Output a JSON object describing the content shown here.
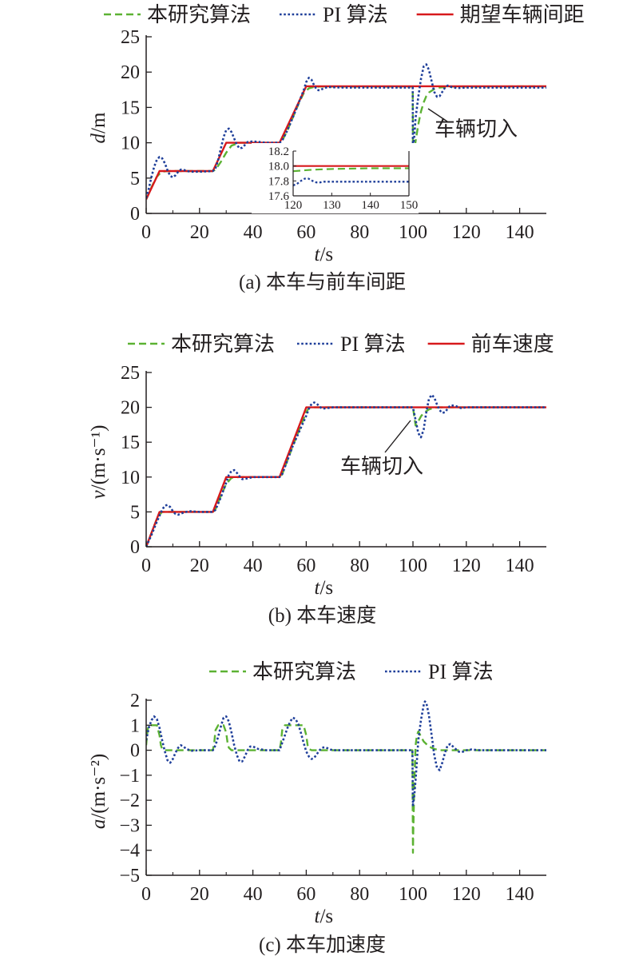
{
  "colors": {
    "proposed": "#5cb233",
    "pi": "#1f3f9a",
    "reference": "#d7191c",
    "axis": "#231f20"
  },
  "chart_data": [
    {
      "id": "a",
      "type": "line",
      "caption": "(a) 本车与前车间距",
      "xlabel_var": "t",
      "xlabel_unit": "/s",
      "ylabel_var": "d",
      "ylabel_unit": "/m",
      "xlim": [
        0,
        150
      ],
      "ylim": [
        0,
        25
      ],
      "xticks": [
        "0",
        "20",
        "40",
        "60",
        "80",
        "100",
        "120",
        "140"
      ],
      "yticks": [
        "0",
        "5",
        "10",
        "15",
        "20",
        "25"
      ],
      "legend": [
        "本研究算法",
        "PI 算法",
        "期望车辆间距"
      ],
      "annotation": "车辆切入",
      "series": [
        {
          "name": "本研究算法",
          "style": "dashed",
          "x": [
            0,
            1,
            2,
            3,
            4,
            5,
            6,
            8,
            10,
            15,
            20,
            25,
            26,
            28,
            30,
            32,
            35,
            40,
            45,
            50,
            51,
            53,
            55,
            57,
            59,
            61,
            63,
            65,
            70,
            80,
            90,
            99.9,
            100,
            100.5,
            101,
            102,
            103,
            104,
            105,
            106,
            108,
            110,
            112,
            115,
            120,
            130,
            140,
            150
          ],
          "y": [
            2,
            2.8,
            3.7,
            4.5,
            5.2,
            5.6,
            5.9,
            6,
            6,
            6,
            6,
            6,
            6.2,
            7.3,
            8.6,
            9.6,
            10,
            10,
            10,
            10,
            10.3,
            11.8,
            13.6,
            15.4,
            17,
            17.7,
            17.9,
            17.95,
            17.95,
            17.95,
            17.95,
            17.95,
            7.8,
            8.8,
            10.2,
            12.6,
            14.4,
            15.7,
            16.6,
            17.1,
            17.6,
            17.8,
            17.9,
            17.95,
            17.95,
            17.96,
            17.97,
            17.97
          ]
        },
        {
          "name": "PI 算法",
          "style": "dotted",
          "x": [
            0,
            1,
            2,
            3,
            4,
            5,
            6,
            7,
            8,
            9,
            10,
            11,
            12,
            13,
            14,
            15,
            17,
            20,
            25,
            26,
            27,
            28,
            29,
            30,
            31,
            32,
            33,
            34,
            35,
            36,
            37,
            38,
            40,
            45,
            50,
            51,
            53,
            55,
            57,
            59,
            60,
            61,
            62,
            63,
            64,
            65,
            66,
            68,
            70,
            75,
            80,
            90,
            99.9,
            100,
            100.5,
            101,
            102,
            103,
            104,
            105,
            106,
            107,
            108,
            109,
            110,
            111,
            112,
            113,
            115,
            117,
            120,
            125,
            130,
            140,
            150
          ],
          "y": [
            2.2,
            3.5,
            5.2,
            6.6,
            7.6,
            8,
            7.8,
            7.1,
            6.1,
            5.3,
            5.1,
            5.4,
            5.9,
            6.2,
            6.2,
            6,
            5.9,
            5.9,
            6,
            6.4,
            7.6,
            9.2,
            10.8,
            11.8,
            12,
            11.5,
            10.6,
            9.7,
            9.2,
            9.3,
            9.7,
            10.1,
            10.2,
            10,
            10,
            10.3,
            11.8,
            13.6,
            15.5,
            17.4,
            18.6,
            19.2,
            18.9,
            18.1,
            17.5,
            17.4,
            17.6,
            17.9,
            17.85,
            17.8,
            17.8,
            17.8,
            17.8,
            9,
            11,
            13.5,
            16.5,
            19,
            20.8,
            21.1,
            20.3,
            18.7,
            17.2,
            16.5,
            16.6,
            17.2,
            17.8,
            18.1,
            17.8,
            17.75,
            17.8,
            17.8,
            17.8,
            17.8,
            17.8
          ]
        },
        {
          "name": "期望车辆间距",
          "style": "solid",
          "x": [
            0,
            5,
            25,
            30,
            50,
            60,
            150
          ],
          "y": [
            2,
            6,
            6,
            10,
            10,
            18,
            18
          ]
        }
      ],
      "inset": {
        "xlim": [
          120,
          150
        ],
        "ylim": [
          17.6,
          18.2
        ],
        "xticks": [
          "120",
          "130",
          "140",
          "150"
        ],
        "yticks": [
          "17.6",
          "17.8",
          "18.0",
          "18.2"
        ],
        "series": [
          {
            "name": "本研究算法",
            "style": "dashed",
            "x": [
              120,
              125,
              130,
              140,
              150
            ],
            "y": [
              17.93,
              17.95,
              17.96,
              17.97,
              17.97
            ]
          },
          {
            "name": "PI 算法",
            "style": "dotted",
            "x": [
              120,
              121,
              122,
              123,
              124,
              125,
              126,
              127,
              128,
              129,
              130,
              135,
              140,
              150
            ],
            "y": [
              17.74,
              17.76,
              17.8,
              17.83,
              17.83,
              17.8,
              17.78,
              17.78,
              17.79,
              17.79,
              17.79,
              17.79,
              17.79,
              17.79
            ]
          },
          {
            "name": "期望车辆间距",
            "style": "solid",
            "x": [
              120,
              150
            ],
            "y": [
              18.0,
              18.0
            ]
          }
        ]
      }
    },
    {
      "id": "b",
      "type": "line",
      "caption": "(b) 本车速度",
      "xlabel_var": "t",
      "xlabel_unit": "/s",
      "ylabel_var": "v",
      "ylabel_unit": "/(m·s⁻¹)",
      "xlim": [
        0,
        150
      ],
      "ylim": [
        0,
        25
      ],
      "xticks": [
        "0",
        "20",
        "40",
        "60",
        "80",
        "100",
        "120",
        "140"
      ],
      "yticks": [
        "0",
        "5",
        "10",
        "15",
        "20",
        "25"
      ],
      "legend": [
        "本研究算法",
        "PI 算法",
        "前车速度"
      ],
      "annotation": "车辆切入",
      "series": [
        {
          "name": "本研究算法",
          "style": "dashed",
          "x": [
            0,
            2,
            4,
            5,
            6,
            8,
            10,
            15,
            25,
            26,
            28,
            30,
            32,
            35,
            40,
            50,
            51,
            55,
            60,
            61,
            63,
            65,
            70,
            100,
            101,
            102,
            103,
            104,
            106,
            108,
            110,
            115,
            150
          ],
          "y": [
            0,
            2,
            4,
            4.6,
            5,
            5,
            5,
            5,
            5,
            5.4,
            7.3,
            9,
            9.9,
            10,
            10,
            10,
            10.4,
            14.5,
            19.3,
            19.9,
            20,
            20,
            20,
            20,
            17.4,
            18,
            18.7,
            19.2,
            19.7,
            19.95,
            20,
            20,
            20
          ]
        },
        {
          "name": "PI 算法",
          "style": "dotted",
          "x": [
            0,
            2,
            4,
            6,
            7,
            8,
            9,
            10,
            11,
            12,
            14,
            16,
            20,
            25,
            26,
            28,
            30,
            31,
            32,
            33,
            34,
            35,
            36,
            38,
            40,
            45,
            50,
            51,
            55,
            60,
            61,
            62,
            63,
            64,
            65,
            66,
            68,
            70,
            75,
            100,
            101,
            102,
            103,
            104,
            105,
            106,
            107,
            108,
            109,
            110,
            111,
            112,
            113,
            114,
            116,
            118,
            120,
            125,
            130,
            150
          ],
          "y": [
            0,
            1.7,
            3.6,
            5.3,
            5.9,
            6,
            5.7,
            5.1,
            4.7,
            4.6,
            4.9,
            5.1,
            5,
            5,
            5.3,
            7.1,
            9.2,
            10.3,
            10.9,
            11,
            10.6,
            10.1,
            9.7,
            9.8,
            10,
            10,
            10,
            10.4,
            14.5,
            18.8,
            19.8,
            20.5,
            20.7,
            20.5,
            20.1,
            19.8,
            19.9,
            20,
            20,
            20,
            18.2,
            16.3,
            15.7,
            16.8,
            19.3,
            21.2,
            21.8,
            21.4,
            20.4,
            19.6,
            19.2,
            19.3,
            19.8,
            20.3,
            20.2,
            19.9,
            20,
            20,
            20,
            20
          ]
        },
        {
          "name": "前车速度",
          "style": "solid",
          "x": [
            0,
            5,
            25,
            30,
            50,
            60,
            150
          ],
          "y": [
            0,
            5,
            5,
            10,
            10,
            20,
            20
          ]
        }
      ]
    },
    {
      "id": "c",
      "type": "line",
      "caption": "(c) 本车加速度",
      "xlabel_var": "t",
      "xlabel_unit": "/s",
      "ylabel_var": "a",
      "ylabel_unit": "/(m·s⁻²)",
      "xlim": [
        0,
        150
      ],
      "ylim": [
        -5,
        2
      ],
      "xticks": [
        "0",
        "20",
        "40",
        "60",
        "80",
        "100",
        "120",
        "140"
      ],
      "yticks": [
        "−5",
        "−4",
        "−3",
        "−2",
        "−1",
        "0",
        "1",
        "2"
      ],
      "legend": [
        "本研究算法",
        "PI 算法"
      ],
      "series": [
        {
          "name": "本研究算法",
          "style": "dashed",
          "x": [
            0,
            0.5,
            1,
            4,
            5,
            5.5,
            6,
            7,
            25,
            25.5,
            26,
            27,
            29,
            30,
            30.5,
            31,
            32,
            50,
            50.5,
            51,
            52,
            59,
            60,
            60.5,
            61,
            62,
            99.8,
            100,
            100.1,
            100.3,
            100.5,
            101,
            101.5,
            102,
            103,
            104,
            106,
            108,
            110,
            115,
            150
          ],
          "y": [
            0.2,
            0.8,
            1,
            1,
            0.6,
            0.2,
            0.05,
            0,
            0,
            0.3,
            0.8,
            1,
            1,
            0.7,
            0.3,
            0.1,
            0,
            0,
            0.3,
            0.8,
            1,
            1,
            0.6,
            0.2,
            0.05,
            0,
            0,
            -4.1,
            -3.4,
            -2.4,
            -1.3,
            0.2,
            0.6,
            0.75,
            0.55,
            0.35,
            0.15,
            0.05,
            0,
            0,
            0
          ]
        },
        {
          "name": "PI 算法",
          "style": "dotted",
          "x": [
            0,
            1,
            2,
            3,
            4,
            5,
            6,
            7,
            8,
            9,
            10,
            11,
            12,
            13,
            14,
            15,
            17,
            20,
            25,
            26,
            27,
            28,
            29,
            30,
            31,
            32,
            33,
            34,
            35,
            36,
            37,
            38,
            39,
            40,
            42,
            45,
            50,
            51,
            52,
            53,
            54,
            55,
            56,
            57,
            58,
            59,
            60,
            61,
            62,
            63,
            64,
            65,
            66,
            67,
            68,
            69,
            70,
            72,
            75,
            99.8,
            100,
            100.5,
            101,
            101.5,
            102,
            103,
            104,
            104.5,
            105,
            106,
            107,
            108,
            109,
            110,
            111,
            112,
            113,
            114,
            115,
            116,
            117,
            118,
            119,
            120,
            122,
            125,
            150
          ],
          "y": [
            0.4,
            0.9,
            1.2,
            1.35,
            1.25,
            0.9,
            0.4,
            -0.05,
            -0.4,
            -0.5,
            -0.35,
            -0.1,
            0.1,
            0.2,
            0.15,
            0.05,
            -0.02,
            0,
            0,
            0.2,
            0.55,
            0.95,
            1.3,
            1.35,
            1.15,
            0.7,
            0.2,
            -0.2,
            -0.45,
            -0.45,
            -0.25,
            0,
            0.15,
            0.15,
            0.05,
            0,
            0,
            0.3,
            0.6,
            0.9,
            1.15,
            1.3,
            1.25,
            1.05,
            0.7,
            0.3,
            -0.05,
            -0.25,
            -0.35,
            -0.3,
            -0.15,
            0,
            0.1,
            0.12,
            0.08,
            0.03,
            0,
            0,
            0,
            0,
            -2.2,
            -1.8,
            -1.2,
            -0.4,
            0.4,
            1.2,
            1.8,
            1.95,
            1.9,
            1.4,
            0.6,
            -0.2,
            -0.7,
            -0.8,
            -0.5,
            -0.1,
            0.2,
            0.25,
            0.15,
            0.05,
            -0.05,
            -0.08,
            -0.05,
            0,
            0.03,
            0,
            0
          ]
        }
      ]
    }
  ]
}
